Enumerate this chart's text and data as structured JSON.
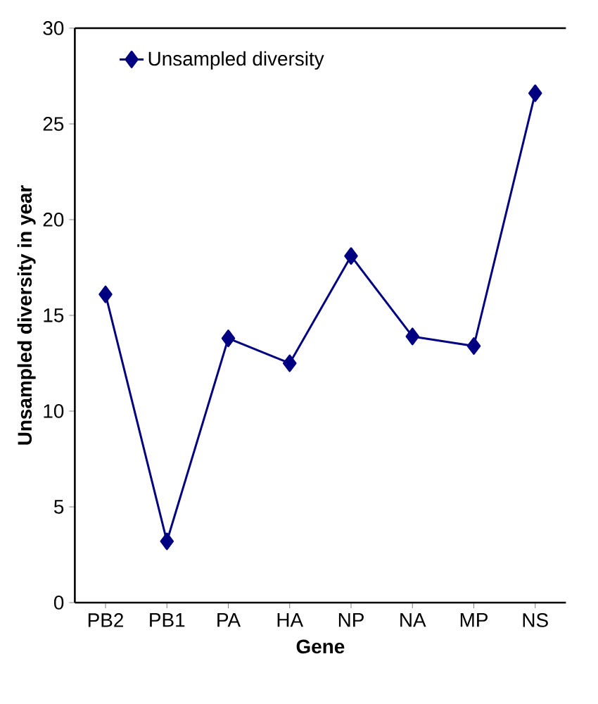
{
  "chart_data": {
    "type": "line",
    "xlabel": "Gene",
    "ylabel": "Unsampled diversity in year",
    "categories": [
      "PB2",
      "PB1",
      "PA",
      "HA",
      "NP",
      "NA",
      "MP",
      "NS"
    ],
    "series": [
      {
        "name": "Unsampled diversity",
        "color": "#000080",
        "values": [
          16.1,
          3.2,
          13.8,
          12.5,
          18.1,
          13.9,
          13.4,
          26.6
        ]
      }
    ],
    "ylim": [
      0,
      30
    ],
    "yticks": [
      0,
      5,
      10,
      15,
      20,
      25,
      30
    ],
    "marker": "diamond",
    "line_style": "solid",
    "legend": "top left",
    "grid": false
  }
}
